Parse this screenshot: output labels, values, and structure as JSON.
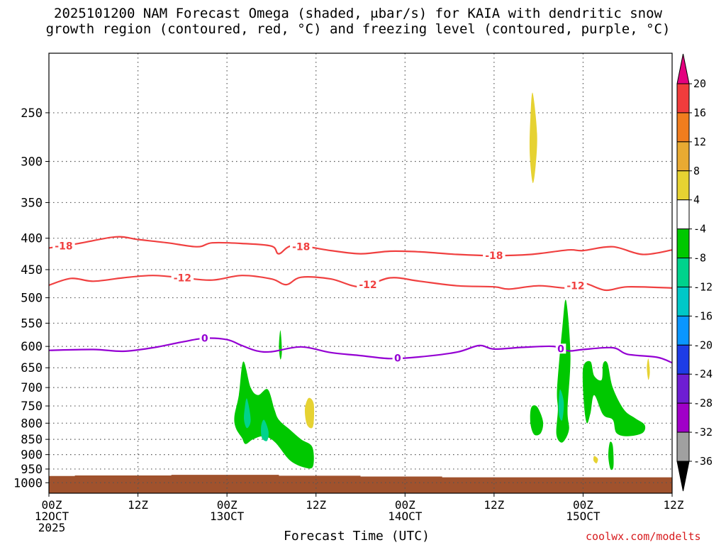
{
  "title": {
    "line1": "2025101200 NAM Forecast Omega (shaded, μbar/s) for KAIA with dendritic snow",
    "line2": "growth region (contoured, red, °C) and freezing level (contoured, purple, °C)"
  },
  "credit": "coolwx.com/modelts",
  "chart_data": {
    "type": "heatmap",
    "xlabel": "Forecast Time (UTC)",
    "ylabel": "",
    "x_range_hours": [
      0,
      84
    ],
    "x_ticks": [
      {
        "hour": 0,
        "lines": [
          "00Z",
          "12OCT",
          "2025"
        ]
      },
      {
        "hour": 12,
        "lines": [
          "12Z"
        ]
      },
      {
        "hour": 24,
        "lines": [
          "00Z",
          "13OCT"
        ]
      },
      {
        "hour": 36,
        "lines": [
          "12Z"
        ]
      },
      {
        "hour": 48,
        "lines": [
          "00Z",
          "14OCT"
        ]
      },
      {
        "hour": 60,
        "lines": [
          "12Z"
        ]
      },
      {
        "hour": 72,
        "lines": [
          "00Z",
          "15OCT"
        ]
      },
      {
        "hour": 84,
        "lines": [
          "12Z"
        ]
      }
    ],
    "y_scale": "log-pressure",
    "y_range_hPa": [
      1040,
      200
    ],
    "y_ticks": [
      250,
      300,
      350,
      400,
      450,
      500,
      550,
      600,
      650,
      700,
      750,
      800,
      850,
      900,
      950,
      1000
    ],
    "grid": true,
    "colorbar": {
      "position": "right",
      "levels": [
        20,
        16,
        12,
        8,
        4,
        -4,
        -8,
        -12,
        -16,
        -20,
        -24,
        -28,
        -32,
        -36
      ],
      "colors": [
        "#e4007f",
        "#f03c3c",
        "#f07d1e",
        "#e8aa32",
        "#e6d232",
        "#ffffff",
        "#00c800",
        "#00d28c",
        "#00c8c8",
        "#0a96ff",
        "#1e3ce6",
        "#6e1ed2",
        "#a000c8",
        "#a0a0a0",
        "#000000"
      ]
    },
    "ground_color": "#a0522d",
    "ground": [
      {
        "hour": 0,
        "p": 975
      },
      {
        "hour": 3.5,
        "p": 973
      },
      {
        "hour": 16.5,
        "p": 971
      },
      {
        "hour": 31,
        "p": 974
      },
      {
        "hour": 42,
        "p": 977
      },
      {
        "hour": 53,
        "p": 980
      },
      {
        "hour": 84,
        "p": 982
      }
    ],
    "contours": [
      {
        "kind": "dendritic",
        "level": -18,
        "color": "#f04040",
        "labels": [
          {
            "hour": 2,
            "text": "-18"
          },
          {
            "hour": 34,
            "text": "-18"
          },
          {
            "hour": 60,
            "text": "-18"
          }
        ],
        "points": [
          [
            0,
            415
          ],
          [
            4,
            408
          ],
          [
            9,
            398
          ],
          [
            12,
            402
          ],
          [
            16,
            407
          ],
          [
            20,
            413
          ],
          [
            22,
            407
          ],
          [
            26,
            408
          ],
          [
            30,
            412
          ],
          [
            31,
            424
          ],
          [
            33,
            411
          ],
          [
            38,
            419
          ],
          [
            42,
            424
          ],
          [
            46,
            420
          ],
          [
            50,
            421
          ],
          [
            55,
            425
          ],
          [
            60,
            427
          ],
          [
            65,
            425
          ],
          [
            70,
            418
          ],
          [
            72,
            419
          ],
          [
            76,
            413
          ],
          [
            80,
            425
          ],
          [
            84,
            418
          ]
        ]
      },
      {
        "kind": "dendritic",
        "level": -12,
        "color": "#f04040",
        "labels": [
          {
            "hour": 18,
            "text": "-12"
          },
          {
            "hour": 43,
            "text": "-12"
          },
          {
            "hour": 71,
            "text": "-12"
          }
        ],
        "points": [
          [
            0,
            477
          ],
          [
            3,
            465
          ],
          [
            6,
            470
          ],
          [
            10,
            464
          ],
          [
            14,
            460
          ],
          [
            18,
            464
          ],
          [
            22,
            468
          ],
          [
            26,
            460
          ],
          [
            30,
            466
          ],
          [
            32,
            476
          ],
          [
            34,
            463
          ],
          [
            38,
            466
          ],
          [
            42,
            480
          ],
          [
            46,
            464
          ],
          [
            50,
            470
          ],
          [
            55,
            478
          ],
          [
            60,
            480
          ],
          [
            62,
            484
          ],
          [
            66,
            478
          ],
          [
            70,
            482
          ],
          [
            72,
            473
          ],
          [
            75,
            486
          ],
          [
            78,
            480
          ],
          [
            84,
            482
          ]
        ]
      },
      {
        "kind": "freezing",
        "level": 0,
        "color": "#9400d3",
        "labels": [
          {
            "hour": 21,
            "text": "0"
          },
          {
            "hour": 47,
            "text": "0"
          },
          {
            "hour": 69,
            "text": "0"
          }
        ],
        "points": [
          [
            0,
            609
          ],
          [
            6,
            607
          ],
          [
            10,
            611
          ],
          [
            14,
            603
          ],
          [
            18,
            590
          ],
          [
            21,
            582
          ],
          [
            24,
            585
          ],
          [
            26,
            598
          ],
          [
            28,
            610
          ],
          [
            30,
            612
          ],
          [
            34,
            601
          ],
          [
            38,
            614
          ],
          [
            42,
            621
          ],
          [
            46,
            628
          ],
          [
            50,
            624
          ],
          [
            55,
            613
          ],
          [
            58,
            598
          ],
          [
            60,
            606
          ],
          [
            64,
            602
          ],
          [
            68,
            600
          ],
          [
            70,
            610
          ],
          [
            72,
            607
          ],
          [
            76,
            603
          ],
          [
            78,
            618
          ],
          [
            82,
            625
          ],
          [
            84,
            638
          ]
        ]
      }
    ],
    "omega_blobs": [
      {
        "value": -6,
        "points": [
          [
            25.0,
            780
          ],
          [
            25.6,
            720
          ],
          [
            26.2,
            635
          ],
          [
            27.2,
            700
          ],
          [
            28.2,
            720
          ],
          [
            29.5,
            705
          ],
          [
            30.4,
            760
          ],
          [
            31.0,
            790
          ],
          [
            32.5,
            820
          ],
          [
            34.0,
            850
          ],
          [
            35.5,
            875
          ],
          [
            35.6,
            940
          ],
          [
            34.5,
            945
          ],
          [
            32.5,
            920
          ],
          [
            30.5,
            860
          ],
          [
            29.0,
            840
          ],
          [
            27.5,
            850
          ],
          [
            26.5,
            865
          ],
          [
            26.0,
            845
          ],
          [
            25.2,
            815
          ]
        ]
      },
      {
        "value": -10,
        "points": [
          [
            26.7,
            730
          ],
          [
            27.2,
            790
          ],
          [
            26.7,
            815
          ],
          [
            26.3,
            790
          ],
          [
            26.4,
            755
          ]
        ]
      },
      {
        "value": -10,
        "points": [
          [
            29.0,
            790
          ],
          [
            29.6,
            825
          ],
          [
            29.4,
            855
          ],
          [
            28.7,
            845
          ],
          [
            28.6,
            810
          ]
        ]
      },
      {
        "value": -6,
        "points": [
          [
            31.2,
            565
          ],
          [
            31.4,
            610
          ],
          [
            31.2,
            630
          ],
          [
            31.0,
            600
          ]
        ]
      },
      {
        "value": 6,
        "points": [
          [
            35.0,
            728
          ],
          [
            35.7,
            745
          ],
          [
            35.6,
            810
          ],
          [
            34.8,
            805
          ],
          [
            34.5,
            760
          ]
        ]
      },
      {
        "value": 6,
        "points": [
          [
            65.2,
            232
          ],
          [
            65.8,
            270
          ],
          [
            65.6,
            305
          ],
          [
            65.2,
            325
          ],
          [
            64.8,
            290
          ],
          [
            64.9,
            255
          ]
        ]
      },
      {
        "value": -6,
        "points": [
          [
            65.0,
            755
          ],
          [
            65.8,
            752
          ],
          [
            66.6,
            795
          ],
          [
            66.3,
            830
          ],
          [
            65.4,
            835
          ],
          [
            64.9,
            800
          ]
        ]
      },
      {
        "value": -6,
        "points": [
          [
            68.5,
            700
          ],
          [
            69.2,
            560
          ],
          [
            69.7,
            505
          ],
          [
            70.3,
            620
          ],
          [
            69.9,
            760
          ],
          [
            70.1,
            820
          ],
          [
            69.2,
            860
          ],
          [
            68.4,
            835
          ],
          [
            68.6,
            760
          ]
        ]
      },
      {
        "value": -10,
        "points": [
          [
            68.9,
            705
          ],
          [
            69.4,
            740
          ],
          [
            69.2,
            790
          ],
          [
            68.8,
            780
          ],
          [
            68.7,
            745
          ]
        ]
      },
      {
        "value": -6,
        "points": [
          [
            72.0,
            650
          ],
          [
            73.0,
            635
          ],
          [
            73.5,
            670
          ],
          [
            74.5,
            680
          ],
          [
            74.7,
            640
          ],
          [
            75.3,
            640
          ],
          [
            76.0,
            700
          ],
          [
            77.5,
            760
          ],
          [
            79.0,
            785
          ],
          [
            80.3,
            805
          ],
          [
            80.0,
            830
          ],
          [
            78.0,
            840
          ],
          [
            76.5,
            830
          ],
          [
            76.0,
            790
          ],
          [
            74.7,
            775
          ],
          [
            73.5,
            720
          ],
          [
            73.0,
            770
          ],
          [
            72.5,
            800
          ],
          [
            72.1,
            740
          ]
        ]
      },
      {
        "value": -6,
        "points": [
          [
            75.6,
            860
          ],
          [
            76.0,
            870
          ],
          [
            76.1,
            940
          ],
          [
            75.7,
            950
          ],
          [
            75.4,
            905
          ]
        ]
      },
      {
        "value": 6,
        "points": [
          [
            73.5,
            905
          ],
          [
            74.0,
            915
          ],
          [
            73.8,
            930
          ],
          [
            73.4,
            920
          ]
        ]
      },
      {
        "value": 6,
        "points": [
          [
            80.8,
            628
          ],
          [
            81.0,
            660
          ],
          [
            80.8,
            680
          ],
          [
            80.6,
            650
          ]
        ]
      }
    ]
  }
}
